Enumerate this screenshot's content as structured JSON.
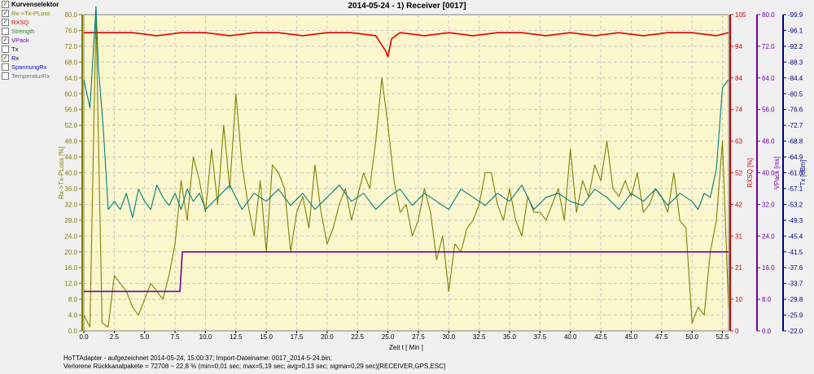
{
  "selector": {
    "title": "Kurvenselektor",
    "items": [
      {
        "label": "Rx->Tx-PLoss",
        "checked": true,
        "color": "#808000"
      },
      {
        "label": "RXSQ",
        "checked": true,
        "color": "#e00000"
      },
      {
        "label": "Strength",
        "checked": false,
        "color": "#2a8a2a"
      },
      {
        "label": "VPack",
        "checked": true,
        "color": "#8000a0"
      },
      {
        "label": "Tx",
        "checked": false,
        "color": "#000000"
      },
      {
        "label": "Rx",
        "checked": true,
        "color": "#000080"
      },
      {
        "label": "SpannungRx",
        "checked": false,
        "color": "#1010c0"
      },
      {
        "label": "TemperaturRx",
        "checked": false,
        "color": "#707070"
      }
    ]
  },
  "footer": {
    "line1": "HoTTAdapter - aufgezeichnet 2014-05-24, 15:00:37; Import-Dateiname: 0017_2014-5-24.bin;",
    "line2": "Verlorene Rückkanalpakete = 72708 ~ 22,8 % (min=0,01 sec; max=5,19 sec; avg=0,13 sec; sigma=0,29 sec)[RECEIVER,GPS,ESC]"
  },
  "chart_data": {
    "type": "line",
    "title": "2014-05-24 - 1) Receiver [0017]",
    "xlabel": "Zeit  t  [ Min ]",
    "xlim": [
      0,
      53
    ],
    "x_ticks": [
      "0.0",
      "2.5",
      "5.0",
      "7.5",
      "10.0",
      "12.5",
      "15.0",
      "17.5",
      "20.0",
      "22.5",
      "25.0",
      "27.5",
      "30.0",
      "32.5",
      "35.0",
      "37.5",
      "40.0",
      "42.5",
      "45.0",
      "47.5",
      "50.0",
      "52.5"
    ],
    "grid": true,
    "colors": {
      "background": "#fbf6cc",
      "grid": "#c8c8c8"
    },
    "axes": [
      {
        "label": "Rx->Tx-PLoss  [%]",
        "side": "left",
        "color": "#808000",
        "range": [
          0,
          80
        ],
        "ticks": [
          "0.0",
          "4.0",
          "8.0",
          "12.0",
          "16.0",
          "20.0",
          "24.0",
          "28.0",
          "32.0",
          "36.0",
          "40.0",
          "44.0",
          "48.0",
          "52.0",
          "56.0",
          "60.0",
          "64.0",
          "68.0",
          "72.0",
          "76.0",
          "80.0"
        ]
      },
      {
        "label": "RXSQ  [%]",
        "side": "right",
        "color": "#d00000",
        "range": [
          0,
          105
        ],
        "ticks": [
          "0",
          "10",
          "21",
          "31",
          "42",
          "52",
          "63",
          "74",
          "84",
          "94",
          "105"
        ]
      },
      {
        "label": "VPack  [ms]",
        "side": "right",
        "color": "#7000a0",
        "range": [
          0,
          80
        ],
        "ticks": [
          "0.0",
          "8.0",
          "16.0",
          "24.0",
          "32.0",
          "40.0",
          "48.0",
          "56.0",
          "64.0",
          "72.0",
          "80.0"
        ]
      },
      {
        "label": "Tx  [dBm]",
        "side": "right",
        "color": "#000080",
        "range": [
          -99.9,
          -22.0
        ],
        "ticks": [
          "-22.0",
          "-25.9",
          "-29.8",
          "-33.7",
          "-37.6",
          "-41.5",
          "-45.4",
          "-49.3",
          "-53.2",
          "-57.1",
          "-61.0",
          "-64.9",
          "-68.8",
          "-72.7",
          "-76.6",
          "-80.5",
          "-84.4",
          "-88.3",
          "-92.2",
          "-96.1",
          "-99.9"
        ]
      }
    ],
    "series": [
      {
        "name": "Rx->Tx-PLoss",
        "color": "#808000",
        "x": [
          0,
          0.5,
          1,
          1.5,
          2,
          2.5,
          3,
          3.5,
          4,
          4.5,
          5,
          5.5,
          6,
          6.5,
          7,
          7.5,
          8,
          8.5,
          9,
          9.5,
          10,
          10.5,
          11,
          11.5,
          12,
          12.5,
          13,
          13.5,
          14,
          14.5,
          15,
          15.5,
          16,
          16.5,
          17,
          17.5,
          18,
          18.5,
          19,
          19.5,
          20,
          20.5,
          21,
          21.5,
          22,
          22.5,
          23,
          23.5,
          24,
          24.5,
          25,
          25.5,
          26,
          26.5,
          27,
          27.5,
          28,
          28.5,
          29,
          29.5,
          30,
          30.5,
          31,
          31.5,
          32,
          32.5,
          33,
          33.5,
          34,
          34.5,
          35,
          35.5,
          36,
          36.5,
          37,
          37.5,
          38,
          38.5,
          39,
          39.5,
          40,
          40.5,
          41,
          41.5,
          42,
          42.5,
          43,
          43.5,
          44,
          44.5,
          45,
          45.5,
          46,
          46.5,
          47,
          47.5,
          48,
          48.5,
          49,
          49.5,
          50,
          50.5,
          51,
          51.5,
          52,
          52.5,
          53
        ],
        "values": [
          4,
          1,
          80,
          2,
          1,
          14,
          12,
          10,
          6,
          4,
          8,
          12,
          10,
          8,
          14,
          22,
          38,
          28,
          44,
          38,
          30,
          46,
          32,
          52,
          36,
          60,
          42,
          32,
          24,
          38,
          20,
          42,
          40,
          36,
          20,
          30,
          34,
          26,
          42,
          30,
          22,
          26,
          32,
          36,
          28,
          34,
          40,
          36,
          48,
          64,
          52,
          38,
          30,
          32,
          24,
          28,
          36,
          30,
          18,
          24,
          10,
          22,
          20,
          26,
          28,
          32,
          40,
          40,
          32,
          28,
          36,
          28,
          24,
          34,
          30,
          30,
          28,
          32,
          36,
          28,
          46,
          30,
          38,
          34,
          42,
          38,
          48,
          36,
          34,
          38,
          34,
          40,
          30,
          32,
          36,
          34,
          30,
          40,
          28,
          26,
          2,
          6,
          4,
          20,
          28,
          48,
          6
        ]
      },
      {
        "name": "RXSQ",
        "color": "#e00000",
        "x": [
          0,
          2,
          4,
          6,
          8,
          10,
          12,
          14,
          16,
          18,
          20,
          22,
          24,
          24.8,
          25,
          25.3,
          26,
          28,
          30,
          32,
          34,
          36,
          38,
          40,
          42,
          44,
          46,
          48,
          50,
          52,
          53
        ],
        "values": [
          99,
          99,
          99,
          98,
          99,
          99,
          98,
          99,
          99,
          98,
          99,
          99,
          98,
          93,
          91,
          97,
          99,
          98,
          99,
          98,
          99,
          99,
          98,
          99,
          98,
          99,
          98,
          99,
          99,
          98,
          99
        ]
      },
      {
        "name": "VPack",
        "color": "#7000a0",
        "x": [
          0,
          7.9,
          7.9,
          8.1,
          8.1,
          53
        ],
        "values": [
          10,
          10,
          10,
          20,
          20,
          20
        ]
      },
      {
        "name": "Rx",
        "color": "#008080",
        "x": [
          0,
          0.5,
          1,
          1.2,
          1.6,
          2,
          2.5,
          3,
          3.5,
          4,
          4.5,
          5,
          5.5,
          6,
          6.5,
          7,
          7.5,
          8,
          8.5,
          9,
          9.5,
          10,
          11,
          12,
          13,
          14,
          15,
          16,
          17,
          18,
          19,
          20,
          21,
          22,
          23,
          24,
          25,
          26,
          27,
          28,
          29,
          30,
          31,
          32,
          33,
          34,
          35,
          36,
          37,
          38,
          39,
          40,
          41,
          42,
          43,
          44,
          45,
          46,
          47,
          48,
          49,
          50,
          50.5,
          51,
          51.5,
          52,
          52.5,
          53
        ],
        "values": [
          -38,
          -45,
          -20,
          -35,
          -50,
          -70,
          -68,
          -70,
          -66,
          -72,
          -65,
          -68,
          -70,
          -64,
          -67,
          -69,
          -66,
          -70,
          -65,
          -68,
          -66,
          -70,
          -67,
          -64,
          -70,
          -66,
          -68,
          -65,
          -69,
          -66,
          -70,
          -67,
          -64,
          -68,
          -66,
          -70,
          -67,
          -65,
          -69,
          -66,
          -68,
          -70,
          -65,
          -67,
          -69,
          -66,
          -68,
          -64,
          -70,
          -67,
          -66,
          -68,
          -69,
          -65,
          -67,
          -70,
          -66,
          -68,
          -65,
          -69,
          -66,
          -68,
          -70,
          -66,
          -67,
          -60,
          -40,
          -38
        ]
      }
    ]
  }
}
